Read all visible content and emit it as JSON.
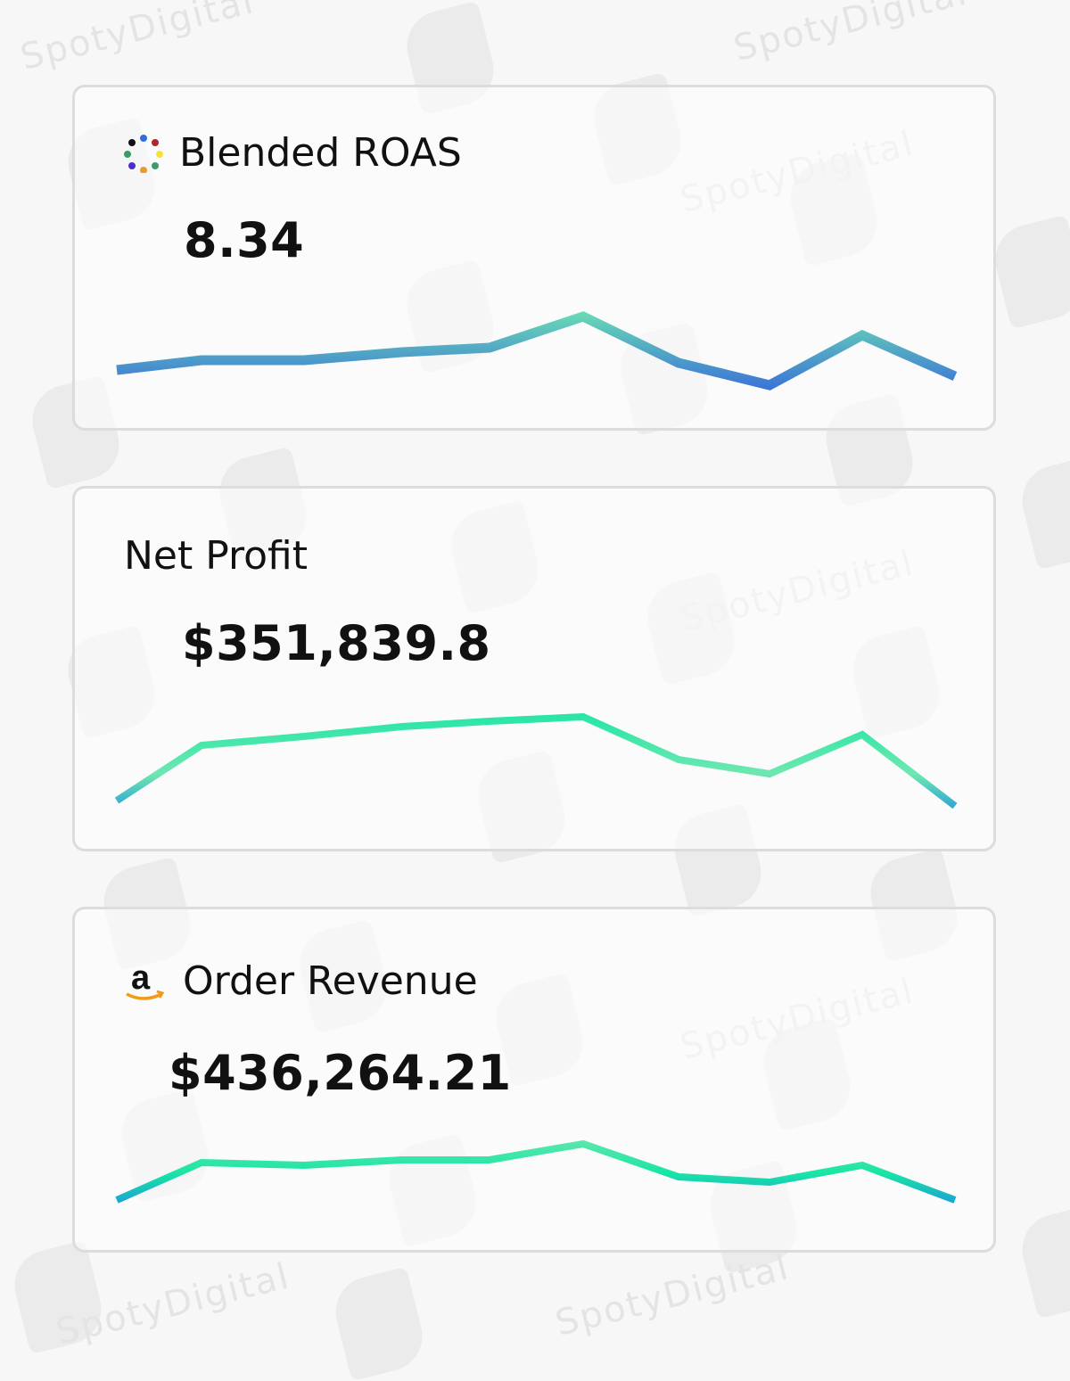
{
  "watermark": "SpotyDigital",
  "cards": [
    {
      "title": "Blended ROAS",
      "icon": "dots-logo-icon",
      "value": "8.34"
    },
    {
      "title": "Net Profit",
      "icon": null,
      "value": "$351,839.8"
    },
    {
      "title": "Order Revenue",
      "icon": "amazon-logo-icon",
      "value": "$436,264.21"
    }
  ],
  "colors": {
    "line_high": "#6ee7b0",
    "line_low": "#3a6fd8",
    "line_mid": "#19e6a4",
    "line_blue": "#1a8fe0",
    "border": "#dcdcdc"
  },
  "chart_data": [
    {
      "type": "line",
      "title": "Blended ROAS",
      "x": [
        1,
        2,
        3,
        4,
        5,
        6,
        7,
        8,
        9,
        10
      ],
      "values": [
        25,
        36,
        36,
        45,
        50,
        85,
        33,
        8,
        64,
        18
      ],
      "ylim": [
        0,
        100
      ],
      "xlabel": "",
      "ylabel": "",
      "grid": false
    },
    {
      "type": "line",
      "title": "Net Profit",
      "x": [
        1,
        2,
        3,
        4,
        5,
        6,
        7,
        8,
        9,
        10
      ],
      "values": [
        22,
        84,
        94,
        105,
        111,
        116,
        68,
        52,
        96,
        16
      ],
      "ylim": [
        0,
        130
      ],
      "xlabel": "",
      "ylabel": "",
      "grid": false
    },
    {
      "type": "line",
      "title": "Order Revenue",
      "x": [
        1,
        2,
        3,
        4,
        5,
        6,
        7,
        8,
        9,
        10
      ],
      "values": [
        14,
        56,
        53,
        59,
        59,
        77,
        40,
        34,
        53,
        14
      ],
      "ylim": [
        0,
        90
      ],
      "xlabel": "",
      "ylabel": "",
      "grid": false
    }
  ]
}
